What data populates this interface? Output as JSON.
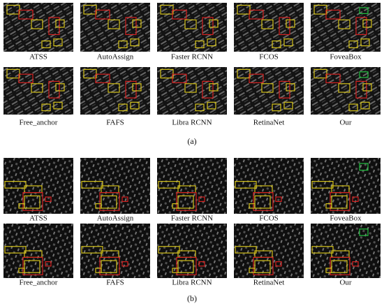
{
  "figure": {
    "panels": [
      {
        "caption": "(a)",
        "images": [
          {
            "label": "ATSS"
          },
          {
            "label": "AutoAssign"
          },
          {
            "label": "Faster RCNN"
          },
          {
            "label": "FCOS"
          },
          {
            "label": "FoveaBox"
          },
          {
            "label": "Free_anchor"
          },
          {
            "label": "FAFS"
          },
          {
            "label": "Libra RCNN"
          },
          {
            "label": "RetinaNet"
          },
          {
            "label": "Our"
          }
        ]
      },
      {
        "caption": "(b)",
        "images": [
          {
            "label": "ATSS"
          },
          {
            "label": "AutoAssign"
          },
          {
            "label": "Faster RCNN"
          },
          {
            "label": "FCOS"
          },
          {
            "label": "FoveaBox"
          },
          {
            "label": "Free_anchor"
          },
          {
            "label": "FAFS"
          },
          {
            "label": "Libra RCNN"
          },
          {
            "label": "RetinaNet"
          },
          {
            "label": "Our"
          }
        ]
      }
    ]
  }
}
